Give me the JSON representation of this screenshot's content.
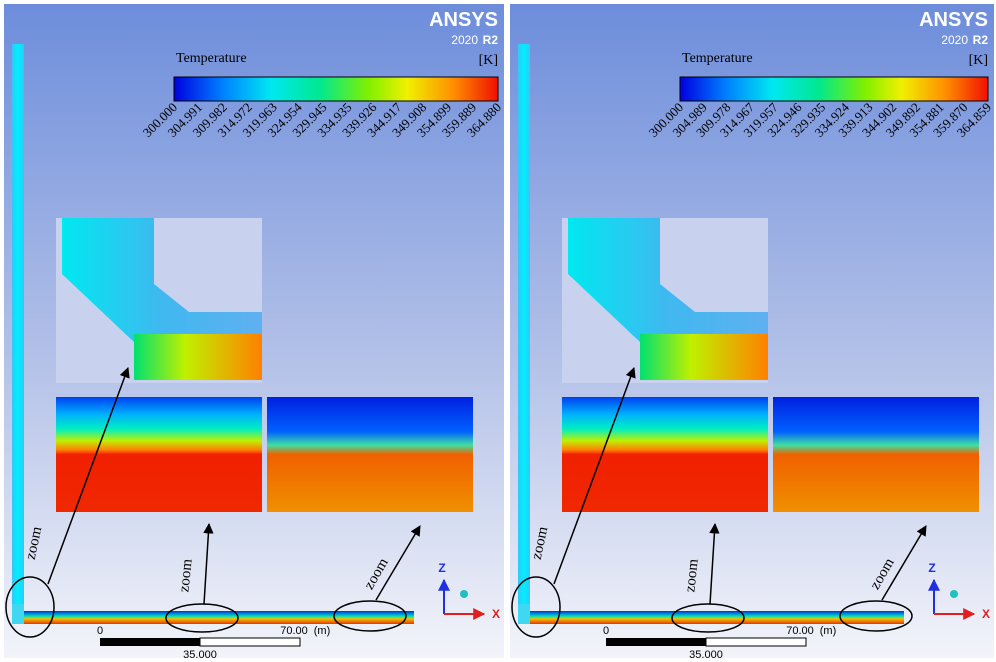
{
  "panels": [
    {
      "logo": {
        "brand": "ANSYS",
        "year": "2020",
        "release": "R2"
      },
      "legend": {
        "title": "Temperature",
        "unit": "[K]",
        "labels": [
          "300.000",
          "304.991",
          "309.982",
          "314.972",
          "319.963",
          "324.954",
          "329.945",
          "334.935",
          "339.926",
          "344.917",
          "349.908",
          "354.899",
          "359.889",
          "364.880"
        ]
      },
      "zoom_labels": [
        "zoom",
        "zoom",
        "zoom"
      ],
      "scale": {
        "start": "0",
        "end": "70.00",
        "unit": "(m)",
        "mid": "35.000"
      },
      "axes": {
        "z": "Z",
        "x": "X"
      }
    },
    {
      "logo": {
        "brand": "ANSYS",
        "year": "2020",
        "release": "R2"
      },
      "legend": {
        "title": "Temperature",
        "unit": "[K]",
        "labels": [
          "300.000",
          "304.989",
          "309.978",
          "314.967",
          "319.957",
          "324.946",
          "329.935",
          "334.924",
          "339.913",
          "344.902",
          "349.892",
          "354.881",
          "359.870",
          "364.859"
        ]
      },
      "zoom_labels": [
        "zoom",
        "zoom",
        "zoom"
      ],
      "scale": {
        "start": "0",
        "end": "70.00",
        "unit": "(m)",
        "mid": "35.000"
      },
      "axes": {
        "z": "Z",
        "x": "X"
      }
    }
  ]
}
